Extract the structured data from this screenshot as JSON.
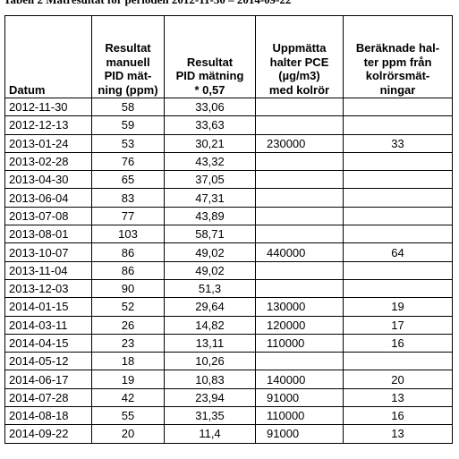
{
  "title": "Tabell 2 Mätresultat för perioden 2012-11-30 – 2014-09-22",
  "table": {
    "headers": [
      [
        "Datum"
      ],
      [
        "Resultat",
        "manuell",
        "PID mät-",
        "ning (ppm)"
      ],
      [
        "Resultat",
        "PID mätning",
        "* 0,57"
      ],
      [
        "Uppmätta",
        "halter PCE",
        "(µg/m3)",
        "med kolrör"
      ],
      [
        "Beräknade hal-",
        "ter ppm från",
        "kolrörsmät-",
        "ningar"
      ]
    ],
    "rows": [
      [
        "2012-11-30",
        "58",
        "33,06",
        null,
        null
      ],
      [
        "2012-12-13",
        "59",
        "33,63",
        null,
        null
      ],
      [
        "2013-01-24",
        "53",
        "30,21",
        "230000",
        "33"
      ],
      [
        "2013-02-28",
        "76",
        "43,32",
        null,
        null
      ],
      [
        "2013-04-30",
        "65",
        "37,05",
        null,
        null
      ],
      [
        "2013-06-04",
        "83",
        "47,31",
        null,
        null
      ],
      [
        "2013-07-08",
        "77",
        "43,89",
        null,
        null
      ],
      [
        "2013-08-01",
        "103",
        "58,71",
        null,
        null
      ],
      [
        "2013-10-07",
        "86",
        "49,02",
        "440000",
        "64"
      ],
      [
        "2013-11-04",
        "86",
        "49,02",
        null,
        null
      ],
      [
        "2013-12-03",
        "90",
        "51,3",
        null,
        null
      ],
      [
        "2014-01-15",
        "52",
        "29,64",
        "130000",
        "19"
      ],
      [
        "2014-03-11",
        "26",
        "14,82",
        "120000",
        "17"
      ],
      [
        "2014-04-15",
        "23",
        "13,11",
        "110000",
        "16"
      ],
      [
        "2014-05-12",
        "18",
        "10,26",
        null,
        null
      ],
      [
        "2014-06-17",
        "19",
        "10,83",
        "140000",
        "20"
      ],
      [
        "2014-07-28",
        "42",
        "23,94",
        "91000",
        "13"
      ],
      [
        "2014-08-18",
        "55",
        "31,35",
        "110000",
        "16"
      ],
      [
        "2014-09-22",
        "20",
        "11,4",
        "91000",
        "13"
      ]
    ]
  }
}
